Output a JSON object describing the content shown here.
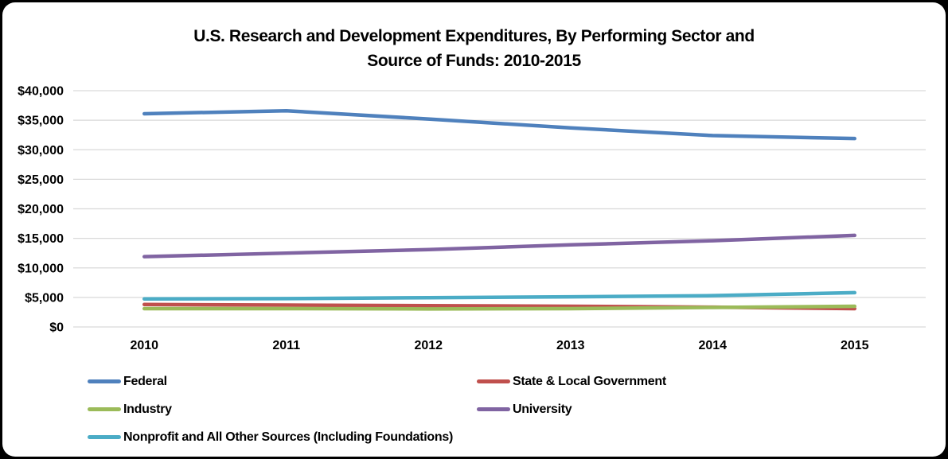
{
  "title": {
    "line1": "U.S. Research and Development Expenditures, By Performing Sector and",
    "line2": "Source of Funds: 2010-2015"
  },
  "chart_data": {
    "type": "line",
    "title": "U.S. Research and Development Expenditures, By Performing Sector and Source of Funds: 2010-2015",
    "categories": [
      "2010",
      "2011",
      "2012",
      "2013",
      "2014",
      "2015"
    ],
    "series": [
      {
        "name": "Federal",
        "color": "#4F81BD",
        "values": [
          36100,
          36600,
          35200,
          33700,
          32400,
          31900
        ]
      },
      {
        "name": "State & Local Government",
        "color": "#C0504D",
        "values": [
          3800,
          3700,
          3600,
          3500,
          3350,
          3100
        ]
      },
      {
        "name": "Industry",
        "color": "#9BBB59",
        "values": [
          3100,
          3100,
          3050,
          3100,
          3300,
          3500
        ]
      },
      {
        "name": "University",
        "color": "#8064A2",
        "values": [
          11900,
          12500,
          13100,
          13900,
          14600,
          15500
        ]
      },
      {
        "name": "Nonprofit and All Other Sources (Including Foundations)",
        "color": "#4BACC6",
        "values": [
          4750,
          4800,
          4950,
          5100,
          5300,
          5800
        ]
      }
    ],
    "y_axis": {
      "min": 0,
      "max": 40000,
      "step": 5000,
      "tick_labels": [
        "$0",
        "$5,000",
        "$10,000",
        "$15,000",
        "$20,000",
        "$25,000",
        "$30,000",
        "$35,000",
        "$40,000"
      ]
    },
    "grid": true,
    "legend_position": "bottom, two columns",
    "legend_order": [
      "Federal",
      "State & Local Government",
      "Industry",
      "University",
      "Nonprofit and All Other Sources (Including Foundations)"
    ]
  },
  "colors": {
    "frame": "#000000",
    "background": "#FFFFFF",
    "gridline": "#D9D9D9",
    "text": "#000000"
  }
}
